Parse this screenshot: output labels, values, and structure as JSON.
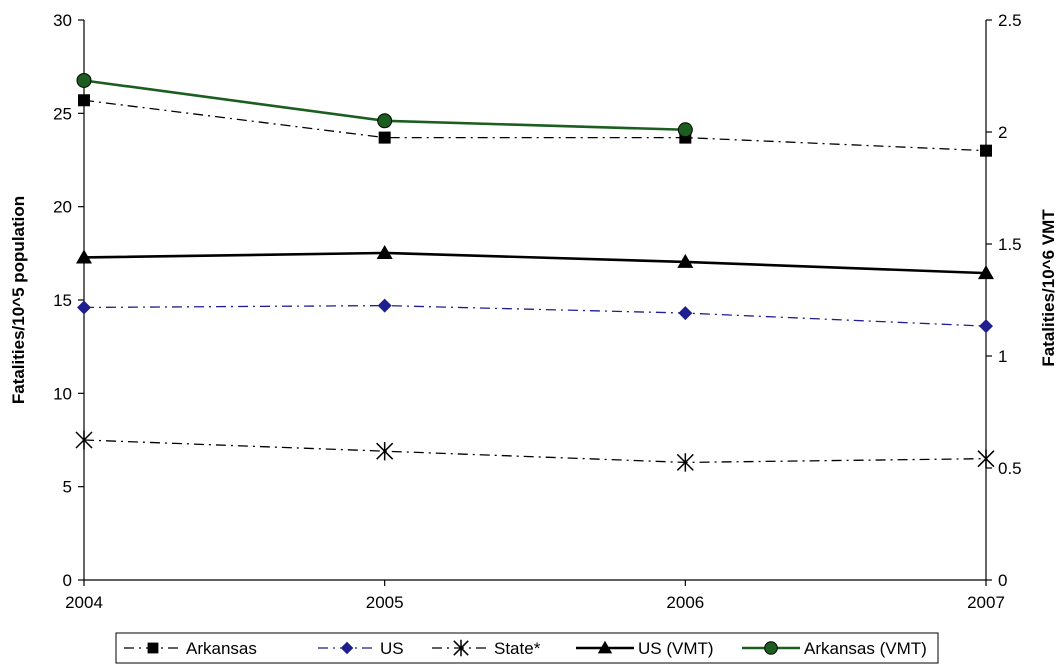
{
  "chart_data": {
    "type": "line",
    "title": "",
    "xlabel": "",
    "ylabel": "Fatalities/10^5 population",
    "y2label": "Fatalities/10^6 VMT",
    "x": [
      "2004",
      "2005",
      "2006",
      "2007"
    ],
    "xlim": [
      2004,
      2007
    ],
    "ylim": [
      0,
      30
    ],
    "y2lim": [
      0,
      2.5
    ],
    "yticks": [
      "0",
      "5",
      "10",
      "15",
      "20",
      "25",
      "30"
    ],
    "y2ticks": [
      "0",
      "0.5",
      "1",
      "1.5",
      "2",
      "2.5"
    ],
    "grid": false,
    "legend_position": "bottom",
    "series": [
      {
        "name": "Arkansas",
        "axis": "left",
        "values": [
          25.7,
          23.7,
          23.7,
          23.0
        ],
        "color": "#000000",
        "dash": "dash-dot",
        "marker": "square"
      },
      {
        "name": "US",
        "axis": "left",
        "values": [
          14.6,
          14.7,
          14.3,
          13.6
        ],
        "color": "#1f1f8f",
        "dash": "dash-dot",
        "marker": "diamond"
      },
      {
        "name": "State*",
        "axis": "left",
        "values": [
          7.5,
          6.9,
          6.3,
          6.5
        ],
        "color": "#000000",
        "dash": "dash-dot",
        "marker": "asterisk"
      },
      {
        "name": "US (VMT)",
        "axis": "right",
        "values": [
          1.44,
          1.46,
          1.42,
          1.37
        ],
        "color": "#000000",
        "dash": "solid",
        "marker": "triangle"
      },
      {
        "name": "Arkansas (VMT)",
        "axis": "right",
        "values": [
          2.23,
          2.05,
          2.01,
          null
        ],
        "color": "#1b5e20",
        "dash": "solid",
        "marker": "circle"
      }
    ]
  }
}
